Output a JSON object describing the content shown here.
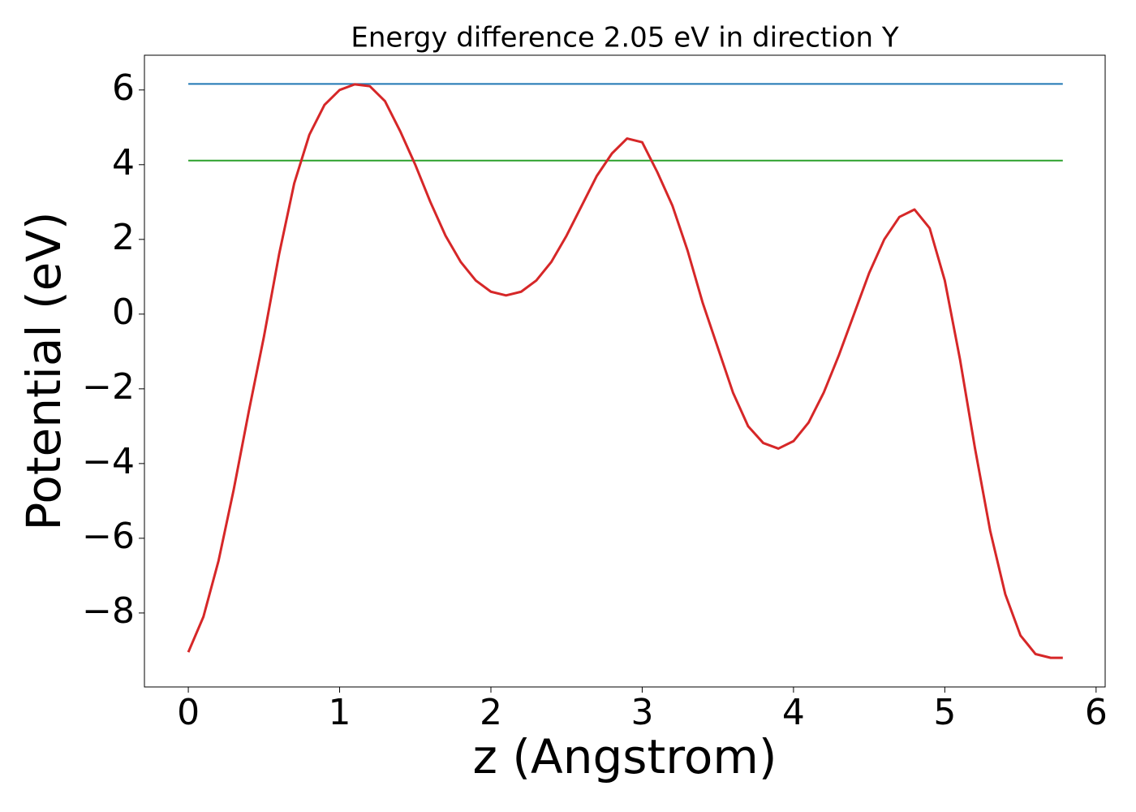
{
  "chart_data": {
    "type": "line",
    "title": "Energy difference 2.05 eV in direction Y",
    "xlabel": "z (Angstrom)",
    "ylabel": "Potential (eV)",
    "xlim": [
      -0.29,
      6.06
    ],
    "ylim": [
      -9.98,
      6.93
    ],
    "xticks": [
      0,
      1,
      2,
      3,
      4,
      5,
      6
    ],
    "yticks": [
      {
        "value": -8,
        "label": "−8"
      },
      {
        "value": -6,
        "label": "−6"
      },
      {
        "value": -4,
        "label": "−4"
      },
      {
        "value": -2,
        "label": "−2"
      },
      0,
      2,
      4,
      6
    ],
    "grid": false,
    "series": [
      {
        "color": "#1f77b4",
        "x": [
          0,
          5.78
        ],
        "values": [
          6.16,
          6.16
        ]
      },
      {
        "color": "#2ca02c",
        "x": [
          0,
          5.78
        ],
        "values": [
          4.11,
          4.11
        ]
      },
      {
        "color": "#d62728",
        "x": [
          0,
          0.1,
          0.2,
          0.3,
          0.4,
          0.5,
          0.6,
          0.7,
          0.8,
          0.9,
          1.0,
          1.1,
          1.2,
          1.3,
          1.4,
          1.5,
          1.6,
          1.7,
          1.8,
          1.9,
          2.0,
          2.1,
          2.2,
          2.3,
          2.4,
          2.5,
          2.6,
          2.7,
          2.8,
          2.9,
          3.0,
          3.1,
          3.2,
          3.3,
          3.4,
          3.5,
          3.6,
          3.7,
          3.8,
          3.9,
          4.0,
          4.1,
          4.2,
          4.3,
          4.4,
          4.5,
          4.6,
          4.7,
          4.8,
          4.9,
          5.0,
          5.1,
          5.2,
          5.3,
          5.4,
          5.5,
          5.6,
          5.7,
          5.78
        ],
        "values": [
          -9.05,
          -8.1,
          -6.6,
          -4.7,
          -2.6,
          -0.6,
          1.6,
          3.5,
          4.8,
          5.6,
          6.0,
          6.15,
          6.1,
          5.7,
          4.9,
          4.0,
          3.0,
          2.1,
          1.4,
          0.9,
          0.6,
          0.5,
          0.6,
          0.9,
          1.4,
          2.1,
          2.9,
          3.7,
          4.3,
          4.7,
          4.6,
          3.8,
          2.9,
          1.7,
          0.3,
          -0.9,
          -2.1,
          -3.0,
          -3.45,
          -3.6,
          -3.4,
          -2.9,
          -2.1,
          -1.1,
          0.0,
          1.1,
          2.0,
          2.6,
          2.8,
          2.3,
          0.9,
          -1.2,
          -3.6,
          -5.8,
          -7.5,
          -8.6,
          -9.1,
          -9.2,
          -9.2
        ]
      }
    ]
  }
}
